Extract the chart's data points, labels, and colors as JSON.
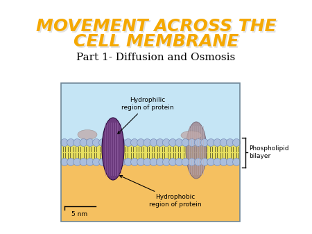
{
  "title_line1": "MOVEMENT ACROSS THE",
  "title_line2": "CELL MEMBRANE",
  "subtitle": "Part 1- Diffusion and Osmosis",
  "title_color": "#F5A800",
  "title_shadow_color": "#D0D0D0",
  "subtitle_color": "#000000",
  "bg_color": "#FFFFFF",
  "title_fontsize": 18,
  "subtitle_fontsize": 11,
  "phospholipid_bilayer_label": "Phospholipid\nbilayer",
  "hydrophilic_label": "Hydrophilic\nregion of protein",
  "hydrophobic_label": "Hydrophobic\nregion of protein",
  "scale_label": "5 nm",
  "cell_bg_top": "#C5E5F5",
  "cell_bg_bottom": "#F5C060",
  "sphere_color": "#AABEDD",
  "tail_color": "#E8E060",
  "protein_color": "#6B3A7D",
  "protein2_color": "#A08890",
  "annotation_fontsize": 6,
  "bracket_color": "#333333"
}
